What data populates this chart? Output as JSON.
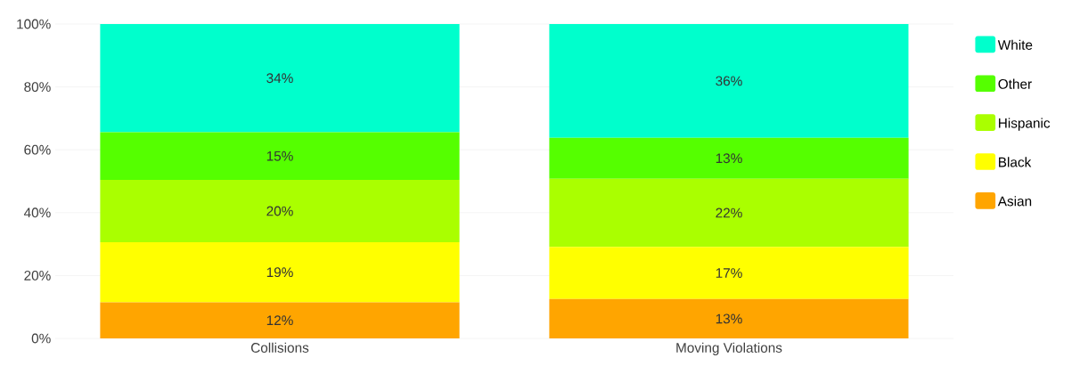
{
  "chart_data": {
    "type": "bar",
    "stacked": true,
    "categories": [
      "Collisions",
      "Moving Violations"
    ],
    "series": [
      {
        "name": "Asian",
        "color": "#ffa500",
        "values": [
          11.5,
          12.5
        ],
        "value_labels": [
          "12%",
          "13%"
        ]
      },
      {
        "name": "Black",
        "color": "#ffff00",
        "values": [
          19.1,
          16.6
        ],
        "value_labels": [
          "19%",
          "17%"
        ]
      },
      {
        "name": "Hispanic",
        "color": "#aaff00",
        "values": [
          19.8,
          21.7
        ],
        "value_labels": [
          "20%",
          "22%"
        ]
      },
      {
        "name": "Other",
        "color": "#55ff00",
        "values": [
          15.2,
          13.0
        ],
        "value_labels": [
          "15%",
          "13%"
        ]
      },
      {
        "name": "White",
        "color": "#00ffcc",
        "values": [
          34.4,
          36.2
        ],
        "value_labels": [
          "34%",
          "36%"
        ]
      }
    ],
    "ylim": [
      0,
      100
    ],
    "yticks": [
      {
        "value": 0,
        "label": "0%"
      },
      {
        "value": 20,
        "label": "20%"
      },
      {
        "value": 40,
        "label": "40%"
      },
      {
        "value": 60,
        "label": "60%"
      },
      {
        "value": 80,
        "label": "80%"
      },
      {
        "value": 100,
        "label": "100%"
      }
    ],
    "grid": "y",
    "legend": "right"
  }
}
